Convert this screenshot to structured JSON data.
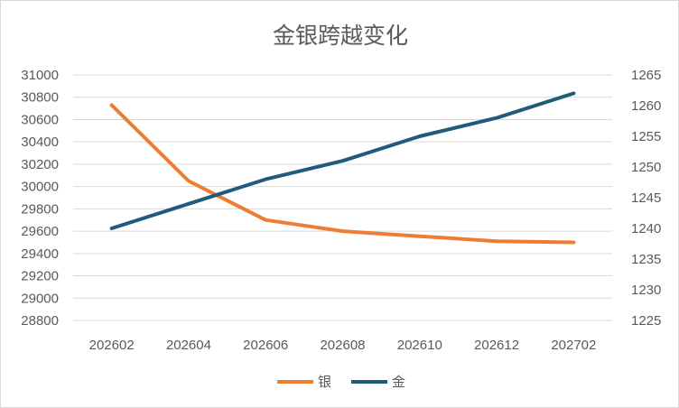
{
  "chart_data": {
    "type": "line",
    "title": "金银跨越变化",
    "categories": [
      "202602",
      "202604",
      "202606",
      "202608",
      "202610",
      "202612",
      "202702"
    ],
    "series": [
      {
        "name": "银",
        "axis": "left",
        "color": "#ED7D31",
        "values": [
          30730,
          30050,
          29700,
          29600,
          29555,
          29510,
          29500
        ]
      },
      {
        "name": "金",
        "axis": "right",
        "color": "#1F5B7A",
        "values": [
          1240,
          1244,
          1248,
          1251,
          1255,
          1258,
          1262
        ]
      }
    ],
    "y_left": {
      "ylim": [
        28800,
        31000
      ],
      "ticks": [
        "28800",
        "29000",
        "29200",
        "29400",
        "29600",
        "29800",
        "30000",
        "30200",
        "30400",
        "30600",
        "30800",
        "31000"
      ]
    },
    "y_right": {
      "ylim": [
        1225,
        1265
      ],
      "ticks": [
        "1225",
        "1230",
        "1235",
        "1240",
        "1245",
        "1250",
        "1255",
        "1260",
        "1265"
      ]
    },
    "grid": true,
    "legend_position": "bottom"
  }
}
